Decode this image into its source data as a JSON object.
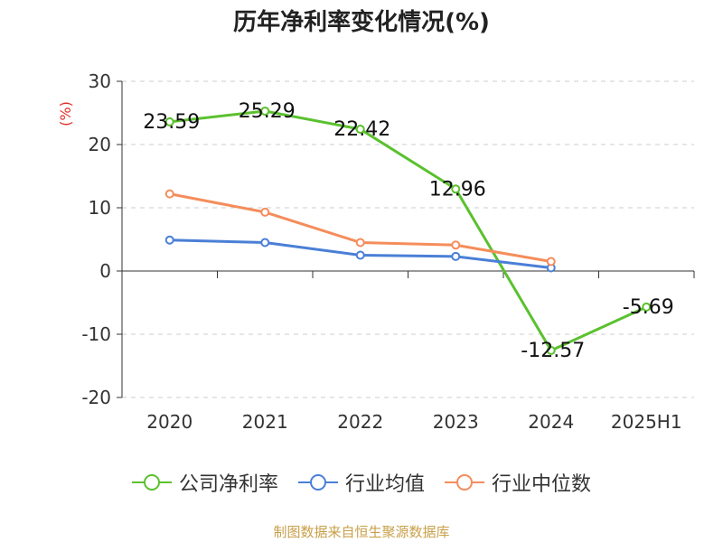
{
  "chart_data": {
    "type": "line",
    "title": "历年净利率变化情况(%)",
    "ylabel": "(%)",
    "categories": [
      "2020",
      "2021",
      "2022",
      "2023",
      "2024",
      "2025H1"
    ],
    "ylim": [
      -20,
      30
    ],
    "yticks": [
      -20,
      -10,
      0,
      10,
      20,
      30
    ],
    "grid": "horizontal-dashed",
    "legend_position": "bottom",
    "series": [
      {
        "name": "公司净利率",
        "color": "#5ac12e",
        "values": [
          23.59,
          25.29,
          22.42,
          12.96,
          -12.57,
          -5.69
        ],
        "show_labels": true
      },
      {
        "name": "行业均值",
        "color": "#4a7fd6",
        "values": [
          4.9,
          4.5,
          2.5,
          2.3,
          0.5,
          null
        ],
        "show_labels": false
      },
      {
        "name": "行业中位数",
        "color": "#f58d5b",
        "values": [
          12.2,
          9.3,
          4.5,
          4.1,
          1.5,
          null
        ],
        "show_labels": false
      }
    ]
  },
  "labels": {
    "legend_company": "公司净利率",
    "legend_avg": "行业均值",
    "legend_median": "行业中位数",
    "source": "制图数据来自恒生聚源数据库"
  }
}
